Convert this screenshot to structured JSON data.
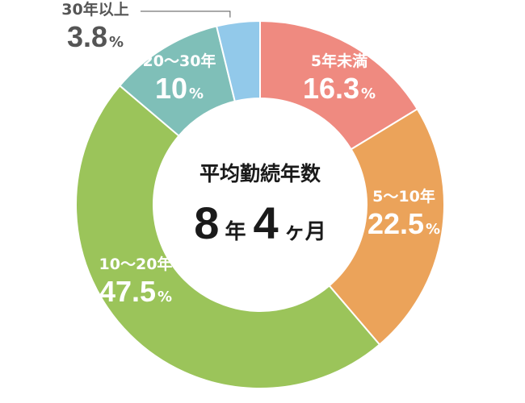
{
  "chart_data": {
    "type": "pie",
    "title": "平均勤続年数",
    "center_value": {
      "years": "8",
      "years_unit": "年",
      "months": "4",
      "months_unit": "ヶ月"
    },
    "unit": "%",
    "categories": [
      "5年未満",
      "5〜10年",
      "10〜20年",
      "20〜30年",
      "30年以上"
    ],
    "values": [
      16.3,
      22.5,
      47.5,
      10,
      3.8
    ],
    "value_labels": [
      "16.3",
      "22.5",
      "47.5",
      "10",
      "3.8"
    ],
    "colors": [
      "#ef8a80",
      "#eba35a",
      "#9bc45a",
      "#7fbfb8",
      "#92c9ea"
    ],
    "legend": "none"
  }
}
